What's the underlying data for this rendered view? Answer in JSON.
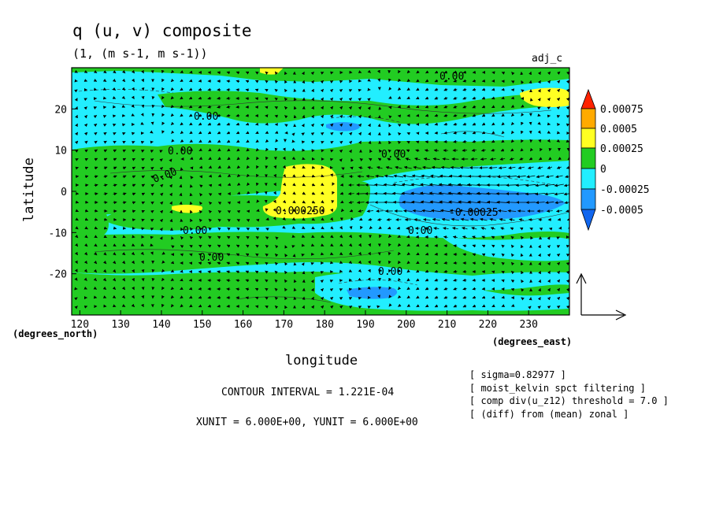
{
  "chart_data": {
    "type": "contour",
    "title": "q (u, v) composite",
    "subtitle": "(1, (m s-1, m s-1))",
    "run_label": "adj_c",
    "xlabel": "longitude",
    "ylabel": "latitude",
    "x_unit_label": "(degrees_east)",
    "y_unit_label": "(degrees_north)",
    "xlim": [
      118,
      240
    ],
    "ylim": [
      -30,
      30
    ],
    "x_ticks": [
      120,
      130,
      140,
      150,
      160,
      170,
      180,
      190,
      200,
      210,
      220,
      230
    ],
    "y_ticks": [
      20,
      10,
      0,
      -10,
      -20
    ],
    "y_tick_labels": [
      "20",
      "10",
      "0",
      "-10",
      "-20"
    ],
    "contour_labels": [
      "0.00",
      "0.00",
      "0.00",
      "0.00",
      "0.00",
      "0.00",
      "0.00",
      "0.00",
      "0.00",
      "0.000250",
      "-0.00025"
    ],
    "colorbar": {
      "labels": [
        "0.00075",
        "0.0005",
        "0.00025",
        "0",
        "-0.00025",
        "-0.0005"
      ],
      "levels": [
        0.00075,
        0.0005,
        0.00025,
        0,
        -0.00025,
        -0.0005
      ],
      "colors": [
        "#ff2200",
        "#ffaa00",
        "#ffff22",
        "#22cc22",
        "#22eeff",
        "#2299ff",
        "#1166ee"
      ]
    },
    "regions": [
      {
        "level": "positive-0.00025",
        "lon": [
          166,
          180
        ],
        "lat": [
          -6,
          6
        ],
        "color": "#ffff22"
      },
      {
        "level": "positive-0.00025",
        "lon": [
          140,
          146
        ],
        "lat": [
          -5,
          -3
        ],
        "color": "#ffff22"
      },
      {
        "level": "positive-0.00025",
        "lon": [
          232,
          240
        ],
        "lat": [
          20,
          24
        ],
        "color": "#ffff22"
      },
      {
        "level": "negative-0.00025",
        "lon": [
          198,
          236
        ],
        "lat": [
          -7,
          1
        ],
        "color": "#2299ff"
      },
      {
        "level": "negative-0.00025",
        "lon": [
          185,
          200
        ],
        "lat": [
          -27,
          -24
        ],
        "color": "#2299ff"
      },
      {
        "level": "negative-0.00025",
        "lon": [
          180,
          186
        ],
        "lat": [
          13,
          15
        ],
        "color": "#2299ff"
      }
    ],
    "wind_pattern": "strong westward arrows along the equator from about 180 to 240 E",
    "footer": {
      "contour_interval": "CONTOUR INTERVAL = 1.221E-04",
      "units": "XUNIT = 6.000E+00, YUNIT = 6.000E+00"
    },
    "notes": [
      "[ sigma=0.82977 ]",
      "[ moist_kelvin spct filtering ]",
      "[ comp div(u_z12) threshold = 7.0 ]",
      "[ (diff) from (mean) zonal ]"
    ]
  }
}
